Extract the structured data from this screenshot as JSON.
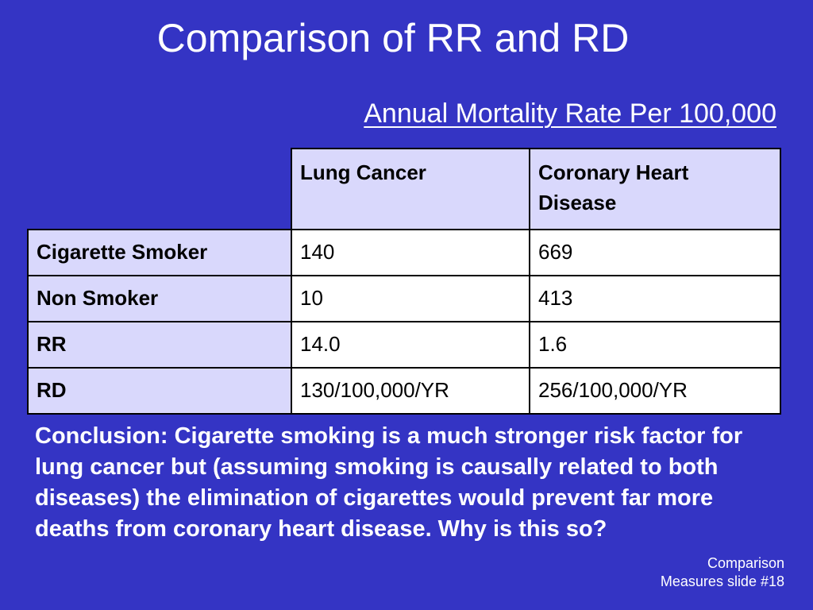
{
  "title": "Comparison of RR and RD",
  "subtitle": "Annual Mortality Rate Per 100,000",
  "table": {
    "headers": [
      "",
      "Lung Cancer",
      "Coronary Heart Disease"
    ],
    "rows": [
      {
        "label": "Cigarette Smoker",
        "lung": "140",
        "chd": "669"
      },
      {
        "label": "Non Smoker",
        "lung": "10",
        "chd": "413"
      },
      {
        "label": "RR",
        "lung": "14.0",
        "chd": "1.6"
      },
      {
        "label": "RD",
        "lung": "130/100,000/YR",
        "chd": "256/100,000/YR"
      }
    ]
  },
  "conclusion": "Conclusion:  Cigarette smoking is a much stronger risk factor for lung cancer but (assuming smoking is causally related to both diseases) the elimination of cigarettes would prevent far more deaths from coronary heart disease. Why is this so?",
  "footer": {
    "line1": "Comparison",
    "line2": "Measures slide #18"
  },
  "colors": {
    "background": "#3434c4",
    "header_cell": "#d9d8fc",
    "value_cell": "#ffffff",
    "text_light": "#ffffff",
    "text_dark": "#000000"
  }
}
